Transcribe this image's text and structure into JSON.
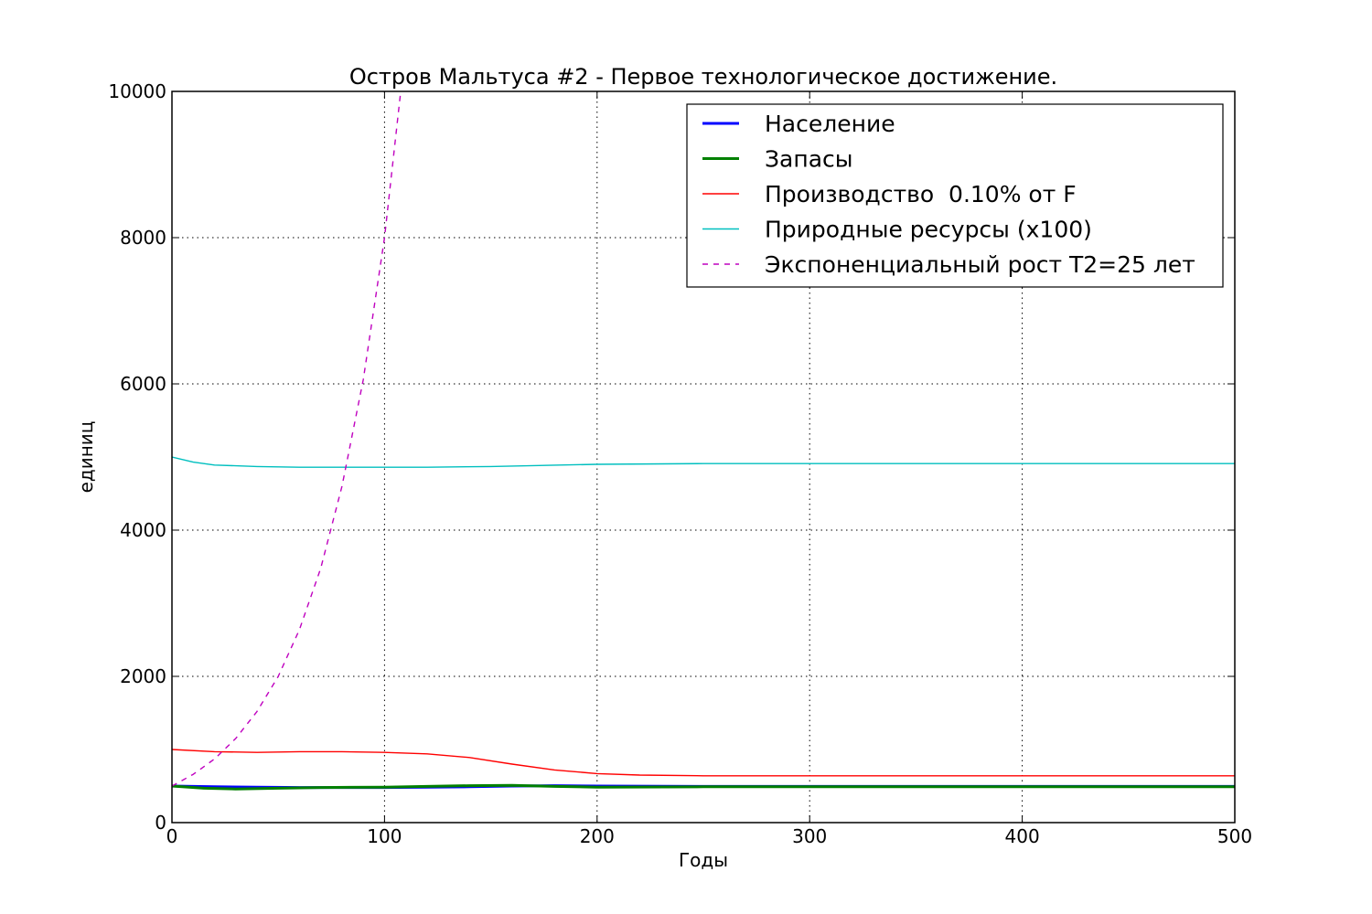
{
  "chart_data": {
    "type": "line",
    "title": "Остров Мальтуса #2 - Первое технологическое достижение.",
    "xlabel": "Годы",
    "ylabel": "единиц",
    "xlim": [
      0,
      500
    ],
    "ylim": [
      0,
      10000
    ],
    "xticks": [
      0,
      100,
      200,
      300,
      400,
      500
    ],
    "yticks": [
      0,
      2000,
      4000,
      6000,
      8000,
      10000
    ],
    "grid": true,
    "legend_position": "top-right",
    "series": [
      {
        "name": "Население",
        "color": "#0000ff",
        "style": "solid",
        "weight": "thick",
        "x": [
          0,
          20,
          40,
          60,
          80,
          100,
          120,
          140,
          160,
          180,
          200,
          250,
          300,
          350,
          400,
          450,
          500
        ],
        "y": [
          500,
          490,
          485,
          480,
          480,
          480,
          485,
          490,
          500,
          505,
          500,
          495,
          495,
          495,
          495,
          495,
          495
        ]
      },
      {
        "name": "Запасы",
        "color": "#008000",
        "style": "solid",
        "weight": "thick",
        "x": [
          0,
          15,
          30,
          50,
          70,
          100,
          120,
          140,
          160,
          180,
          200,
          250,
          300,
          350,
          400,
          450,
          500
        ],
        "y": [
          500,
          470,
          460,
          470,
          480,
          485,
          495,
          505,
          510,
          495,
          485,
          490,
          490,
          490,
          490,
          490,
          490
        ]
      },
      {
        "name": "Производство  0.10% от F",
        "color": "#ff0000",
        "style": "solid",
        "weight": "thin",
        "x": [
          0,
          20,
          40,
          60,
          80,
          100,
          120,
          140,
          160,
          180,
          200,
          220,
          250,
          300,
          350,
          400,
          450,
          500
        ],
        "y": [
          1000,
          970,
          960,
          970,
          970,
          960,
          940,
          890,
          800,
          720,
          670,
          650,
          640,
          640,
          640,
          640,
          640,
          640
        ]
      },
      {
        "name": "Природные ресурсы (x100)",
        "color": "#00bfbf",
        "style": "solid",
        "weight": "thin",
        "x": [
          0,
          10,
          20,
          40,
          60,
          80,
          100,
          120,
          150,
          200,
          250,
          300,
          350,
          400,
          450,
          500
        ],
        "y": [
          5000,
          4930,
          4890,
          4870,
          4860,
          4860,
          4860,
          4860,
          4870,
          4900,
          4910,
          4910,
          4910,
          4910,
          4910,
          4910
        ]
      },
      {
        "name": "Экспоненциальный рост T2=25 лет",
        "color": "#bf00bf",
        "style": "dashed",
        "weight": "thin",
        "x": [
          0,
          10,
          20,
          30,
          40,
          50,
          60,
          70,
          80,
          90,
          100,
          107.6
        ],
        "y": [
          500,
          660,
          870,
          1150,
          1520,
          2000,
          2640,
          3480,
          4600,
          6060,
          8000,
          10000
        ]
      }
    ]
  }
}
